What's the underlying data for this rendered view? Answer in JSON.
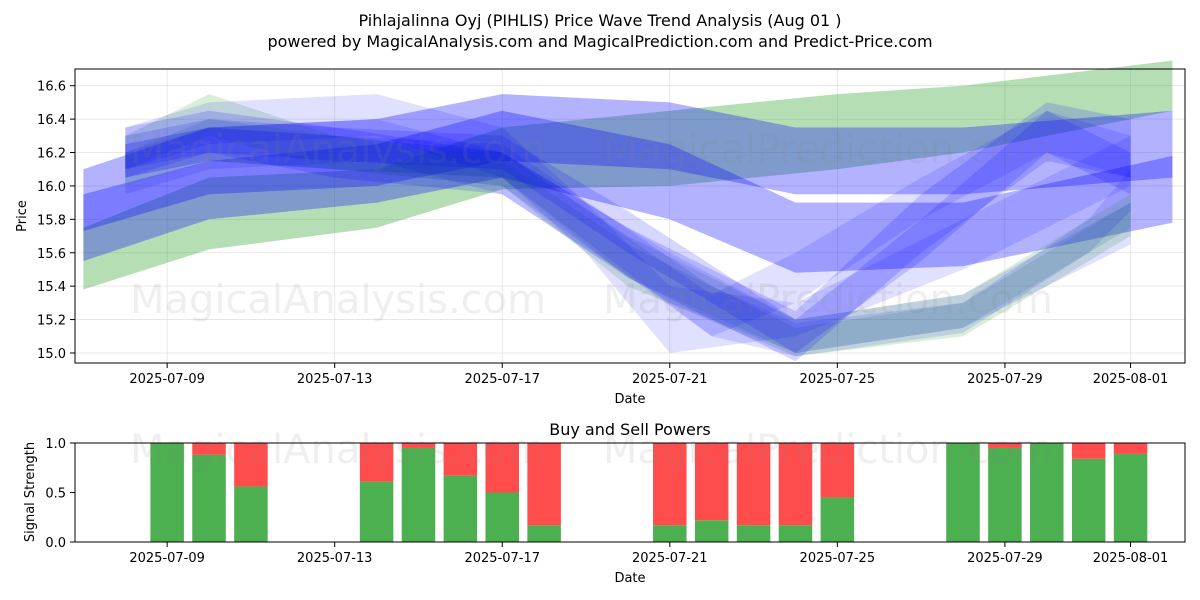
{
  "title_line1": "Pihlajalinna Oyj (PIHLIS) Price Wave Trend Analysis (Aug 01 )",
  "title_line2": "powered by MagicalAnalysis.com and MagicalPrediction.com and Predict-Price.com",
  "watermarks": [
    "MagicalAnalysis.com",
    "MagicalPrediction.com"
  ],
  "colors": {
    "green": "#2ca02c",
    "blue": "#0000ff",
    "buy": "#4caf50",
    "sell": "#ff4c4c"
  },
  "chart_data": [
    {
      "type": "area",
      "xlabel": "Date",
      "ylabel": "Price",
      "x_ticks": [
        "2025-07-09",
        "2025-07-13",
        "2025-07-17",
        "2025-07-21",
        "2025-07-25",
        "2025-07-29",
        "2025-08-01"
      ],
      "y_ticks": [
        "15.0",
        "15.2",
        "15.4",
        "15.6",
        "15.8",
        "16.0",
        "16.2",
        "16.4",
        "16.6"
      ],
      "ylim": [
        14.94,
        16.7
      ],
      "xlim": [
        "2025-07-06.8",
        "2025-08-02.3"
      ],
      "grid": true,
      "bands": [
        {
          "color": "green",
          "opacity": 0.35,
          "x": [
            "2025-07-07",
            "2025-07-10",
            "2025-07-14",
            "2025-07-17",
            "2025-07-21",
            "2025-07-25",
            "2025-07-28",
            "2025-08-02"
          ],
          "upper": [
            15.75,
            16.05,
            16.1,
            16.35,
            16.45,
            16.55,
            16.6,
            16.75
          ],
          "lower": [
            15.38,
            15.62,
            15.75,
            15.98,
            16.0,
            16.1,
            16.2,
            16.45
          ]
        },
        {
          "color": "blue",
          "opacity": 0.3,
          "x": [
            "2025-07-07",
            "2025-07-10",
            "2025-07-14",
            "2025-07-17",
            "2025-07-21",
            "2025-07-24",
            "2025-07-28",
            "2025-08-02"
          ],
          "upper": [
            16.1,
            16.35,
            16.4,
            16.55,
            16.5,
            16.35,
            16.35,
            16.45
          ],
          "lower": [
            15.73,
            15.95,
            16.0,
            16.15,
            16.1,
            15.95,
            15.95,
            16.05
          ]
        },
        {
          "color": "blue",
          "opacity": 0.3,
          "x": [
            "2025-07-07",
            "2025-07-10",
            "2025-07-14",
            "2025-07-17",
            "2025-07-21",
            "2025-07-24",
            "2025-07-28",
            "2025-08-02"
          ],
          "upper": [
            15.95,
            16.15,
            16.25,
            16.45,
            16.25,
            15.9,
            15.9,
            16.18
          ],
          "lower": [
            15.55,
            15.8,
            15.9,
            16.05,
            15.8,
            15.48,
            15.52,
            15.78
          ]
        },
        {
          "color": "green",
          "opacity": 0.18,
          "x": [
            "2025-07-08",
            "2025-07-10",
            "2025-07-13",
            "2025-07-17",
            "2025-07-20",
            "2025-07-24",
            "2025-07-28",
            "2025-08-01"
          ],
          "upper": [
            16.2,
            16.4,
            16.3,
            16.2,
            15.7,
            15.2,
            15.35,
            15.95
          ],
          "lower": [
            16.0,
            16.15,
            16.1,
            16.05,
            15.45,
            15.0,
            15.15,
            15.75
          ]
        },
        {
          "color": "green",
          "opacity": 0.18,
          "x": [
            "2025-07-08",
            "2025-07-10",
            "2025-07-13",
            "2025-07-17",
            "2025-07-20",
            "2025-07-24",
            "2025-07-28",
            "2025-08-01"
          ],
          "upper": [
            16.3,
            16.55,
            16.3,
            16.15,
            15.65,
            15.15,
            15.3,
            15.9
          ],
          "lower": [
            16.1,
            16.3,
            16.1,
            16.0,
            15.4,
            14.98,
            15.1,
            15.7
          ]
        },
        {
          "color": "blue",
          "opacity": 0.16,
          "x": [
            "2025-07-08",
            "2025-07-10",
            "2025-07-13",
            "2025-07-17",
            "2025-07-20",
            "2025-07-24",
            "2025-07-27",
            "2025-07-30",
            "2025-08-01"
          ],
          "upper": [
            16.35,
            16.45,
            16.35,
            16.2,
            15.75,
            15.25,
            15.95,
            16.5,
            16.4
          ],
          "lower": [
            16.05,
            16.2,
            16.05,
            15.95,
            15.45,
            14.95,
            15.6,
            16.15,
            16.05
          ]
        },
        {
          "color": "blue",
          "opacity": 0.16,
          "x": [
            "2025-07-08",
            "2025-07-10",
            "2025-07-13",
            "2025-07-17",
            "2025-07-20",
            "2025-07-24",
            "2025-07-27",
            "2025-07-30",
            "2025-08-01"
          ],
          "upper": [
            16.3,
            16.4,
            16.35,
            16.3,
            15.85,
            15.2,
            15.8,
            16.45,
            16.2
          ],
          "lower": [
            16.1,
            16.2,
            16.15,
            16.1,
            15.6,
            15.0,
            15.55,
            16.2,
            15.95
          ]
        },
        {
          "color": "blue",
          "opacity": 0.12,
          "x": [
            "2025-07-08",
            "2025-07-10",
            "2025-07-14",
            "2025-07-17",
            "2025-07-19",
            "2025-07-21",
            "2025-07-24",
            "2025-07-28",
            "2025-08-01"
          ],
          "upper": [
            16.35,
            16.5,
            16.55,
            16.35,
            15.9,
            15.4,
            15.3,
            15.8,
            16.3
          ],
          "lower": [
            16.1,
            16.25,
            16.3,
            16.05,
            15.6,
            15.0,
            15.1,
            15.5,
            16.0
          ]
        },
        {
          "color": "blue",
          "opacity": 0.12,
          "x": [
            "2025-07-08",
            "2025-07-10",
            "2025-07-14",
            "2025-07-17",
            "2025-07-21",
            "2025-07-24",
            "2025-07-28",
            "2025-08-01"
          ],
          "upper": [
            16.2,
            16.35,
            16.4,
            16.2,
            15.6,
            15.2,
            15.35,
            15.9
          ],
          "lower": [
            15.95,
            16.1,
            16.15,
            15.95,
            15.3,
            15.0,
            15.15,
            15.65
          ]
        },
        {
          "color": "blue",
          "opacity": 0.12,
          "x": [
            "2025-07-08",
            "2025-07-10",
            "2025-07-13",
            "2025-07-17",
            "2025-07-22",
            "2025-07-24",
            "2025-07-28",
            "2025-07-31",
            "2025-08-01"
          ],
          "upper": [
            16.25,
            16.35,
            16.3,
            16.25,
            15.4,
            15.18,
            15.3,
            15.8,
            16.1
          ],
          "lower": [
            16.05,
            16.15,
            16.1,
            16.05,
            15.1,
            14.98,
            15.12,
            15.6,
            15.85
          ]
        },
        {
          "color": "blue",
          "opacity": 0.12,
          "x": [
            "2025-07-08",
            "2025-07-10",
            "2025-07-13",
            "2025-07-17",
            "2025-07-22",
            "2025-07-24",
            "2025-07-27",
            "2025-07-30",
            "2025-08-01"
          ],
          "upper": [
            16.25,
            16.35,
            16.3,
            16.2,
            15.35,
            15.6,
            16.05,
            16.45,
            16.3
          ],
          "lower": [
            16.05,
            16.15,
            16.1,
            16.0,
            15.1,
            15.3,
            15.8,
            16.2,
            16.05
          ]
        }
      ]
    },
    {
      "type": "bar",
      "title": "Buy and Sell Powers",
      "xlabel": "Date",
      "ylabel": "Signal Strength",
      "x_ticks": [
        "2025-07-09",
        "2025-07-13",
        "2025-07-17",
        "2025-07-21",
        "2025-07-25",
        "2025-07-29",
        "2025-08-01"
      ],
      "y_ticks": [
        "0.0",
        "0.5",
        "1.0"
      ],
      "ylim": [
        0,
        1
      ],
      "xlim": [
        "2025-07-06.8",
        "2025-08-02.3"
      ],
      "series": [
        {
          "name": "",
          "color": "buy"
        },
        {
          "name": "",
          "color": "sell"
        }
      ],
      "x": [
        "2025-07-09",
        "2025-07-10",
        "2025-07-11",
        "2025-07-14",
        "2025-07-15",
        "2025-07-16",
        "2025-07-17",
        "2025-07-18",
        "2025-07-21",
        "2025-07-22",
        "2025-07-23",
        "2025-07-24",
        "2025-07-25",
        "2025-07-28",
        "2025-07-29",
        "2025-07-30",
        "2025-07-31",
        "2025-08-01"
      ],
      "buy": [
        1.0,
        0.88,
        0.56,
        0.61,
        0.95,
        0.67,
        0.5,
        0.17,
        0.17,
        0.22,
        0.17,
        0.17,
        0.45,
        1.0,
        0.95,
        1.0,
        0.84,
        0.89
      ]
    }
  ]
}
